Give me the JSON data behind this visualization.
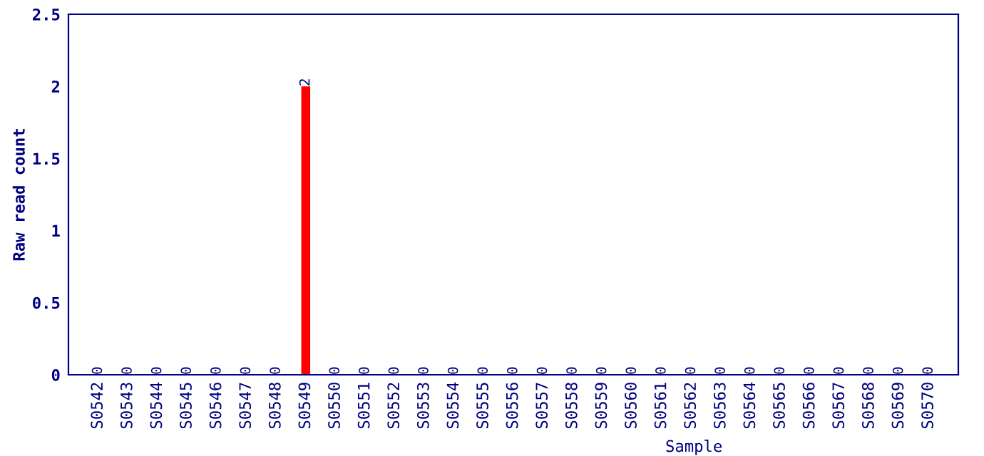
{
  "chart_data": {
    "type": "bar",
    "xlabel": "Sample",
    "ylabel": "Raw read count",
    "categories": [
      "S0542",
      "S0543",
      "S0544",
      "S0545",
      "S0546",
      "S0547",
      "S0548",
      "S0549",
      "S0550",
      "S0551",
      "S0552",
      "S0553",
      "S0554",
      "S0555",
      "S0556",
      "S0557",
      "S0558",
      "S0559",
      "S0560",
      "S0561",
      "S0562",
      "S0563",
      "S0564",
      "S0565",
      "S0566",
      "S0567",
      "S0568",
      "S0569",
      "S0570"
    ],
    "values": [
      0,
      0,
      0,
      0,
      0,
      0,
      0,
      2,
      0,
      0,
      0,
      0,
      0,
      0,
      0,
      0,
      0,
      0,
      0,
      0,
      0,
      0,
      0,
      0,
      0,
      0,
      0,
      0,
      0
    ],
    "color": "#ff0000",
    "ylim": [
      0,
      2.5
    ],
    "yticks": [
      0,
      0.5,
      1,
      1.5,
      2,
      2.5
    ],
    "grid": false,
    "data_labels": true
  }
}
